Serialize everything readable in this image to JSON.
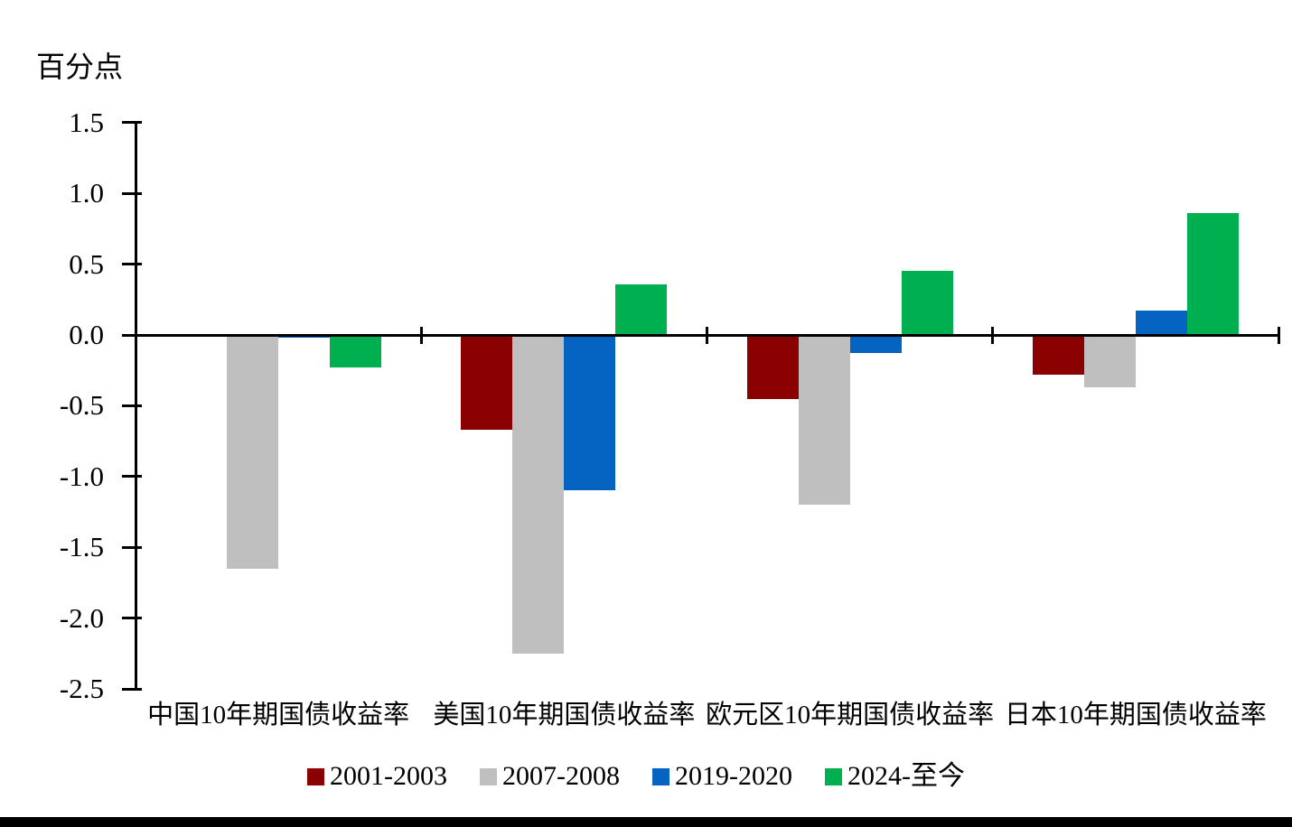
{
  "unit_label": "百分点",
  "chart_data": {
    "type": "bar",
    "title": "",
    "xlabel": "",
    "ylabel": "百分点",
    "categories": [
      "中国10年期国债收益率",
      "美国10年期国债收益率",
      "欧元区10年期国债收益率",
      "日本10年期国债收益率"
    ],
    "series": [
      {
        "name": "2001-2003",
        "color": "#8B0000",
        "values": [
          0,
          -0.67,
          -0.45,
          -0.28
        ]
      },
      {
        "name": "2007-2008",
        "color": "#BFBFBF",
        "values": [
          -1.65,
          -2.25,
          -1.2,
          -0.37
        ]
      },
      {
        "name": "2019-2020",
        "color": "#0563C1",
        "values": [
          -0.02,
          -1.1,
          -0.13,
          0.17
        ]
      },
      {
        "name": "2024-至今",
        "color": "#00B050",
        "values": [
          -0.23,
          0.36,
          0.45,
          0.86
        ]
      }
    ],
    "ylim": [
      -2.5,
      1.5
    ],
    "ytick_step": 0.5,
    "ytick_labels": [
      "1.5",
      "1.0",
      "0.5",
      "0.0",
      "-0.5",
      "-1.0",
      "-1.5",
      "-2.0",
      "-2.5"
    ],
    "grid": false,
    "legend_position": "bottom",
    "axis_color": "#000000"
  }
}
